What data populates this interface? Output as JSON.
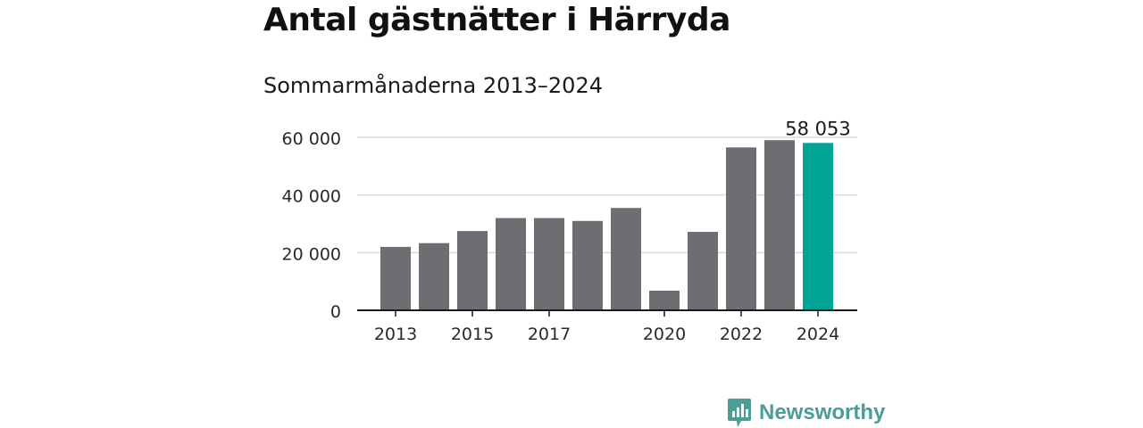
{
  "header": {
    "title": "Antal gästnätter i Härryda",
    "subtitle": "Sommarmånaderna 2013–2024"
  },
  "brand": {
    "name": "Newsworthy",
    "icon": "newsworthy-logo-icon",
    "color": "#4a9e96"
  },
  "chart_data": {
    "type": "bar",
    "title": "Antal gästnätter i Härryda",
    "subtitle": "Sommarmånaderna 2013–2024",
    "xlabel": "",
    "ylabel": "",
    "categories": [
      2013,
      2014,
      2015,
      2016,
      2017,
      2018,
      2019,
      2020,
      2021,
      2022,
      2023,
      2024
    ],
    "x_tick_labels": [
      "2013",
      "2015",
      "2017",
      "2020",
      "2022",
      "2024"
    ],
    "values": [
      22000,
      23300,
      27500,
      32000,
      32000,
      31000,
      35500,
      6800,
      27200,
      56500,
      59000,
      58053
    ],
    "y_ticks": [
      0,
      20000,
      40000,
      60000
    ],
    "y_tick_labels": [
      "0",
      "20 000",
      "40 000",
      "60 000"
    ],
    "ylim": [
      0,
      60000
    ],
    "grid": true,
    "highlight": {
      "category": 2024,
      "label": "58 053"
    },
    "colors": {
      "bar": "#6e6d72",
      "highlight": "#00a596",
      "grid": "#d9d9d9",
      "axis": "#1a1a1a"
    }
  }
}
